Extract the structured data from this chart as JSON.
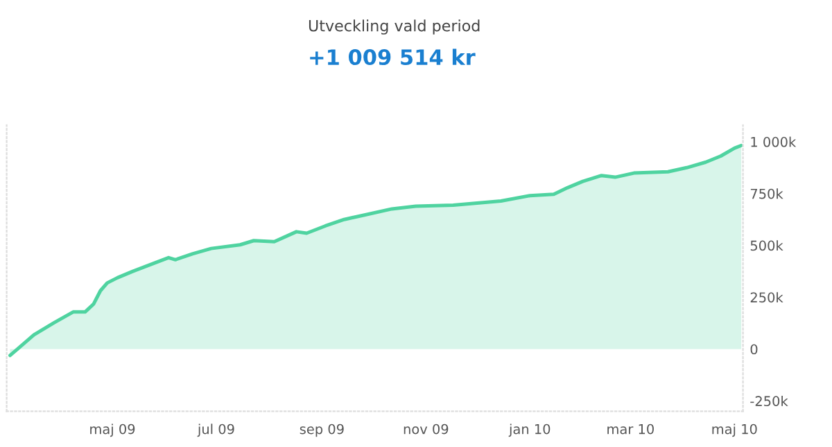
{
  "chart_data": {
    "type": "area",
    "title": "Utveckling vald period",
    "subtitle": "+1 009 514 kr",
    "x": [
      "2009-03-02",
      "2009-03-16",
      "2009-03-28",
      "2009-04-08",
      "2009-04-15",
      "2009-04-20",
      "2009-04-24",
      "2009-04-28",
      "2009-05-04",
      "2009-05-13",
      "2009-05-26",
      "2009-06-03",
      "2009-06-07",
      "2009-06-17",
      "2009-06-28",
      "2009-07-15",
      "2009-07-23",
      "2009-08-04",
      "2009-08-17",
      "2009-08-23",
      "2009-09-03",
      "2009-09-14",
      "2009-09-25",
      "2009-10-12",
      "2009-10-26",
      "2009-11-17",
      "2009-12-15",
      "2010-01-01",
      "2010-01-15",
      "2010-01-23",
      "2010-02-01",
      "2010-02-12",
      "2010-02-20",
      "2010-03-03",
      "2010-03-23",
      "2010-04-03",
      "2010-04-14",
      "2010-04-23",
      "2010-05-01",
      "2010-05-05"
    ],
    "series": [
      {
        "color": "#4fd3a0",
        "values": [
          -31000,
          69000,
          128000,
          179000,
          179000,
          217000,
          281000,
          319000,
          344000,
          375000,
          416000,
          441000,
          431000,
          459000,
          485000,
          503000,
          523000,
          518000,
          566000,
          559000,
          594000,
          625000,
          645000,
          676000,
          689000,
          694000,
          714000,
          740000,
          747000,
          778000,
          809000,
          837000,
          829000,
          849000,
          855000,
          875000,
          901000,
          931000,
          969000,
          982000
        ]
      }
    ],
    "xlim": [
      "2009-02-28",
      "2010-05-06"
    ],
    "xticks": [
      {
        "value": "2009-05-01",
        "label": "maj 09"
      },
      {
        "value": "2009-07-01",
        "label": "jul 09"
      },
      {
        "value": "2009-09-01",
        "label": "sep 09"
      },
      {
        "value": "2009-11-01",
        "label": "nov 09"
      },
      {
        "value": "2010-01-01",
        "label": "jan 10"
      },
      {
        "value": "2010-03-01",
        "label": "mar 10"
      },
      {
        "value": "2010-05-01",
        "label": "maj 10"
      }
    ],
    "ylim": [
      -300000,
      1080000
    ],
    "yticks": [
      {
        "value": -250000,
        "label": "-250k"
      },
      {
        "value": 0,
        "label": "0"
      },
      {
        "value": 250000,
        "label": "250k"
      },
      {
        "value": 500000,
        "label": "500k"
      },
      {
        "value": 750000,
        "label": "750k"
      },
      {
        "value": 1000000,
        "label": "1 000k"
      }
    ],
    "grid": false,
    "legend": false
  }
}
